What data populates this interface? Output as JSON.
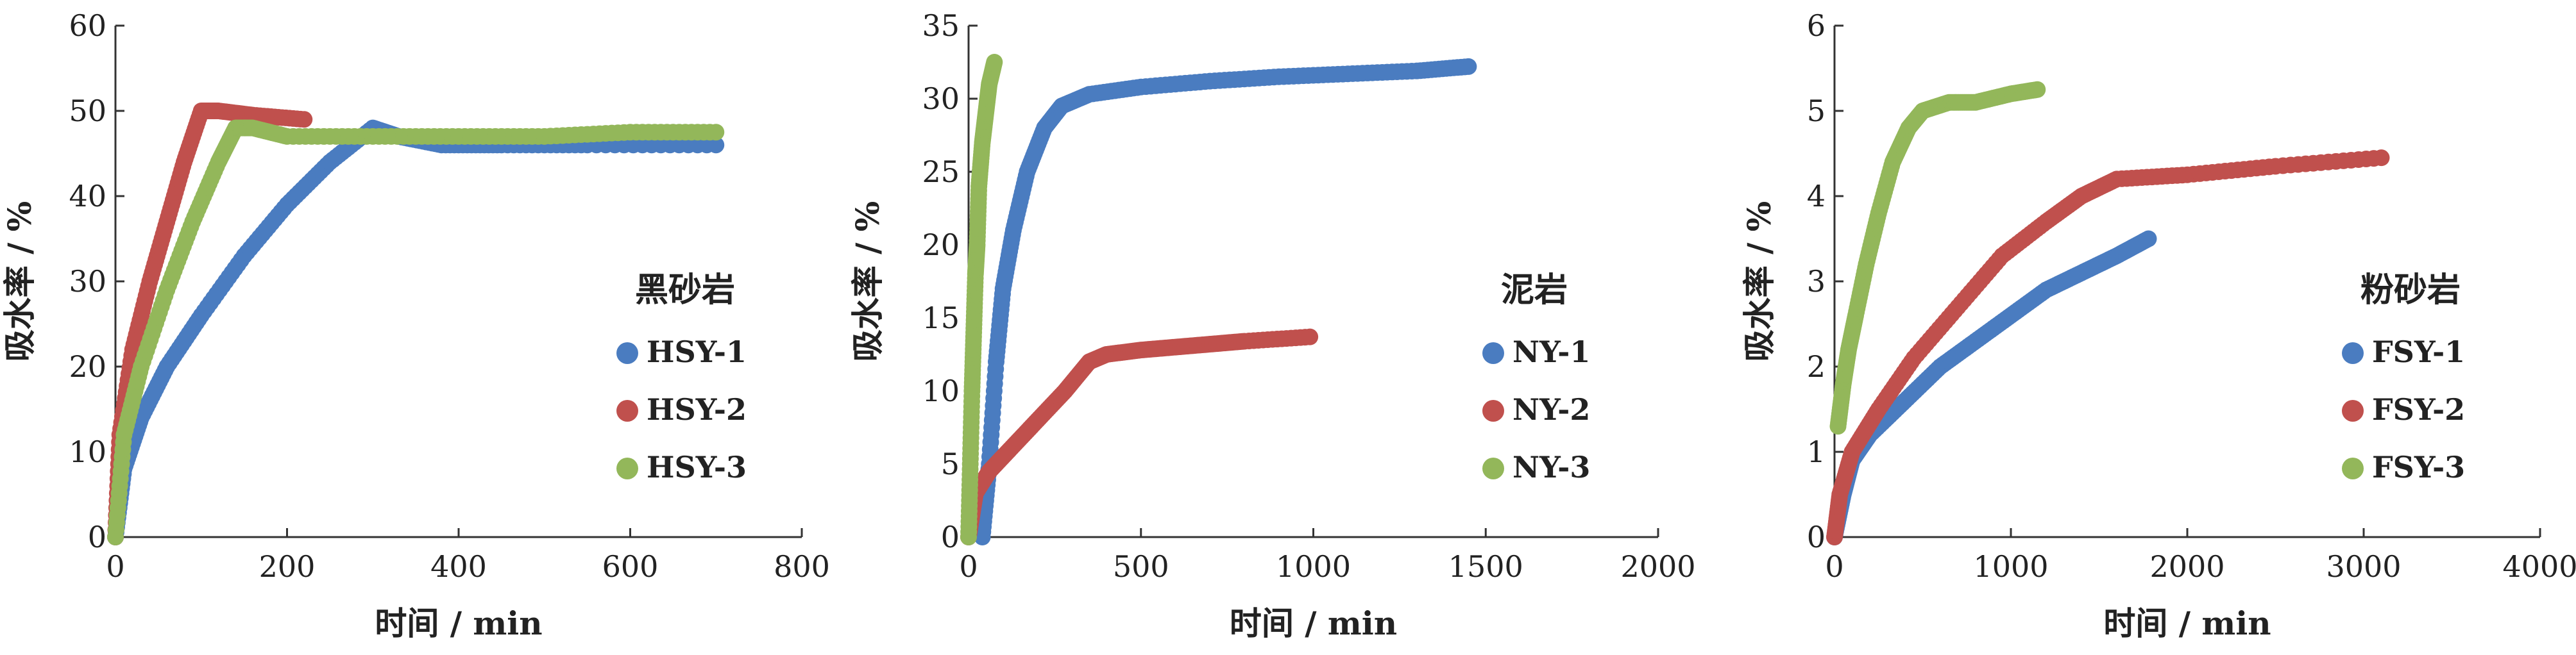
{
  "colors": {
    "series1": "#4a7cc0",
    "series2": "#c0504d",
    "series3": "#93b75a",
    "axis": "#333333"
  },
  "chart_data": [
    {
      "type": "scatter",
      "xlabel": "时间 / min",
      "ylabel": "吸水率 / %",
      "xlim": [
        0,
        800
      ],
      "ylim": [
        0,
        60
      ],
      "xticks": [
        0,
        200,
        400,
        600,
        800
      ],
      "yticks": [
        0,
        10,
        20,
        30,
        40,
        50,
        60
      ],
      "legend_title": "黑砂岩",
      "legend_position": "right",
      "series": [
        {
          "name": "HSY-1",
          "points": [
            [
              0,
              0
            ],
            [
              10,
              8
            ],
            [
              30,
              14
            ],
            [
              60,
              20
            ],
            [
              100,
              26
            ],
            [
              150,
              33
            ],
            [
              200,
              39
            ],
            [
              250,
              44
            ],
            [
              300,
              48
            ],
            [
              330,
              47
            ],
            [
              380,
              46
            ],
            [
              450,
              46
            ],
            [
              550,
              46
            ],
            [
              700,
              46
            ]
          ]
        },
        {
          "name": "HSY-2",
          "points": [
            [
              0,
              0
            ],
            [
              5,
              12
            ],
            [
              20,
              22
            ],
            [
              40,
              30
            ],
            [
              60,
              37
            ],
            [
              80,
              44
            ],
            [
              100,
              50
            ],
            [
              120,
              50
            ],
            [
              160,
              49.5
            ],
            [
              220,
              49
            ]
          ]
        },
        {
          "name": "HSY-3",
          "points": [
            [
              0,
              0
            ],
            [
              10,
              12
            ],
            [
              30,
              20
            ],
            [
              60,
              29
            ],
            [
              90,
              37
            ],
            [
              120,
              44
            ],
            [
              140,
              48
            ],
            [
              160,
              48
            ],
            [
              200,
              47
            ],
            [
              300,
              47
            ],
            [
              400,
              47
            ],
            [
              500,
              47
            ],
            [
              600,
              47.5
            ],
            [
              700,
              47.5
            ]
          ]
        }
      ]
    },
    {
      "type": "scatter",
      "xlabel": "时间 / min",
      "ylabel": "吸水率 / %",
      "xlim": [
        0,
        2000
      ],
      "ylim": [
        0,
        35
      ],
      "xticks": [
        0,
        500,
        1000,
        1500,
        2000
      ],
      "yticks": [
        0,
        5,
        10,
        15,
        20,
        25,
        30,
        35
      ],
      "legend_title": "泥岩",
      "legend_position": "right",
      "series": [
        {
          "name": "NY-1",
          "points": [
            [
              40,
              0
            ],
            [
              60,
              5
            ],
            [
              80,
              12
            ],
            [
              100,
              17
            ],
            [
              130,
              21
            ],
            [
              170,
              25
            ],
            [
              220,
              28
            ],
            [
              270,
              29.5
            ],
            [
              350,
              30.3
            ],
            [
              500,
              30.8
            ],
            [
              700,
              31.2
            ],
            [
              900,
              31.5
            ],
            [
              1100,
              31.7
            ],
            [
              1300,
              31.9
            ],
            [
              1450,
              32.2
            ]
          ]
        },
        {
          "name": "NY-2",
          "points": [
            [
              0,
              0
            ],
            [
              20,
              3
            ],
            [
              60,
              4.5
            ],
            [
              120,
              6
            ],
            [
              200,
              8
            ],
            [
              280,
              10
            ],
            [
              350,
              12
            ],
            [
              400,
              12.5
            ],
            [
              500,
              12.8
            ],
            [
              600,
              13
            ],
            [
              700,
              13.2
            ],
            [
              800,
              13.4
            ],
            [
              990,
              13.7
            ]
          ]
        },
        {
          "name": "NY-3",
          "points": [
            [
              0,
              0
            ],
            [
              5,
              5
            ],
            [
              10,
              10
            ],
            [
              15,
              14
            ],
            [
              20,
              18
            ],
            [
              25,
              20
            ],
            [
              30,
              24
            ],
            [
              40,
              27
            ],
            [
              50,
              29
            ],
            [
              60,
              31
            ],
            [
              75,
              32.5
            ]
          ]
        }
      ]
    },
    {
      "type": "scatter",
      "xlabel": "时间 / min",
      "ylabel": "吸水率 / %",
      "xlim": [
        0,
        4000
      ],
      "ylim": [
        0,
        6
      ],
      "xticks": [
        0,
        1000,
        2000,
        3000,
        4000
      ],
      "yticks": [
        0,
        1,
        2,
        3,
        4,
        5,
        6
      ],
      "legend_title": "粉砂岩",
      "legend_position": "right",
      "series": [
        {
          "name": "FSY-1",
          "points": [
            [
              0,
              0
            ],
            [
              50,
              0.5
            ],
            [
              100,
              0.9
            ],
            [
              200,
              1.2
            ],
            [
              400,
              1.6
            ],
            [
              600,
              2
            ],
            [
              800,
              2.3
            ],
            [
              1000,
              2.6
            ],
            [
              1200,
              2.9
            ],
            [
              1400,
              3.1
            ],
            [
              1600,
              3.3
            ],
            [
              1780,
              3.5
            ]
          ]
        },
        {
          "name": "FSY-2",
          "points": [
            [
              0,
              0
            ],
            [
              30,
              0.5
            ],
            [
              100,
              1
            ],
            [
              250,
              1.5
            ],
            [
              450,
              2.1
            ],
            [
              700,
              2.7
            ],
            [
              950,
              3.3
            ],
            [
              1200,
              3.7
            ],
            [
              1400,
              4
            ],
            [
              1600,
              4.2
            ],
            [
              2000,
              4.25
            ],
            [
              2500,
              4.35
            ],
            [
              3100,
              4.45
            ]
          ]
        },
        {
          "name": "FSY-3",
          "points": [
            [
              20,
              1.3
            ],
            [
              50,
              1.8
            ],
            [
              80,
              2.2
            ],
            [
              120,
              2.6
            ],
            [
              180,
              3.2
            ],
            [
              250,
              3.8
            ],
            [
              330,
              4.4
            ],
            [
              420,
              4.8
            ],
            [
              500,
              5
            ],
            [
              650,
              5.1
            ],
            [
              800,
              5.1
            ],
            [
              1000,
              5.2
            ],
            [
              1150,
              5.25
            ]
          ]
        }
      ]
    }
  ]
}
